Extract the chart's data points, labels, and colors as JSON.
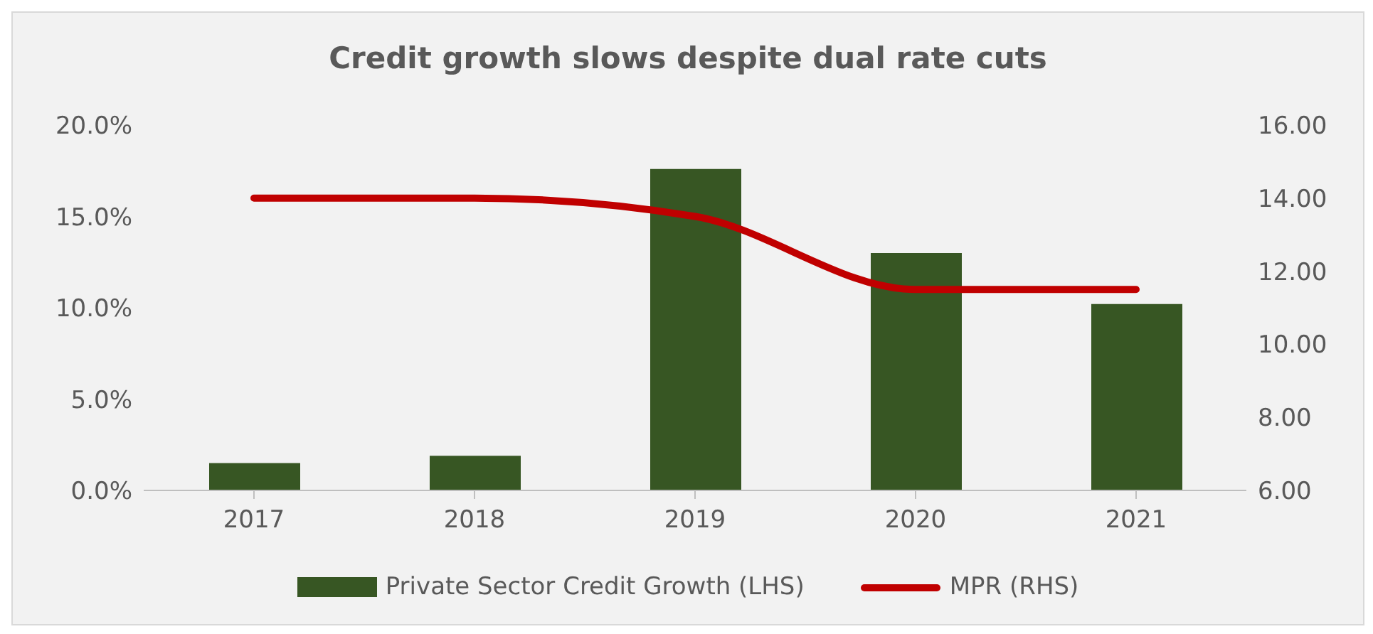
{
  "chart_data": {
    "type": "bar",
    "title": "Credit growth slows despite dual rate cuts",
    "categories": [
      "2017",
      "2018",
      "2019",
      "2020",
      "2021"
    ],
    "series": [
      {
        "name": "Private Sector Credit Growth (LHS)",
        "color": "#375623",
        "values": [
          1.5,
          1.9,
          17.6,
          13.0,
          10.2
        ]
      },
      {
        "name": "MPR (RHS)",
        "type": "line",
        "axis": "y2",
        "color": "#c00000",
        "values": [
          14.0,
          14.0,
          13.5,
          11.5,
          11.5
        ]
      }
    ],
    "ylim": [
      0,
      20
    ],
    "yticks": [
      {
        "value": 0,
        "label": "0.0%"
      },
      {
        "value": 5,
        "label": "5.0%"
      },
      {
        "value": 10,
        "label": "10.0%"
      },
      {
        "value": 15,
        "label": "15.0%"
      },
      {
        "value": 20,
        "label": "20.0%"
      }
    ],
    "y2lim": [
      6,
      16
    ],
    "y2ticks": [
      {
        "value": 6,
        "label": "6.00"
      },
      {
        "value": 8,
        "label": "8.00"
      },
      {
        "value": 10,
        "label": "10.00"
      },
      {
        "value": 12,
        "label": "12.00"
      },
      {
        "value": 14,
        "label": "14.00"
      },
      {
        "value": 16,
        "label": "16.00"
      }
    ],
    "legend": "bottom",
    "grid": false
  }
}
